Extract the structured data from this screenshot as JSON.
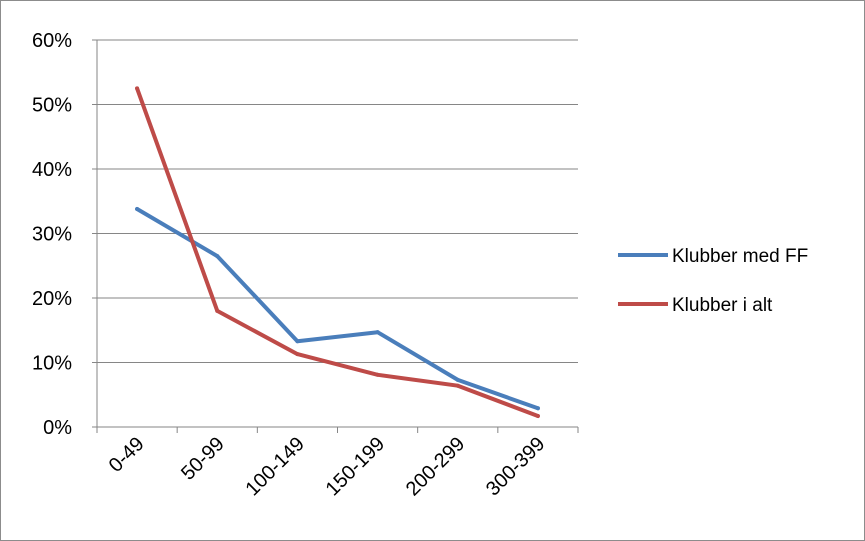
{
  "chart_data": {
    "type": "line",
    "title": "",
    "xlabel": "",
    "ylabel": "",
    "categories": [
      "0-49",
      "50-99",
      "100-149",
      "150-199",
      "200-299",
      "300-399"
    ],
    "y_tick_labels": [
      "0%",
      "10%",
      "20%",
      "30%",
      "40%",
      "50%",
      "60%"
    ],
    "ylim": [
      0,
      60
    ],
    "y_unit": "%",
    "grid": true,
    "legend_position": "right",
    "series": [
      {
        "name": "Klubber med FF",
        "values": [
          33.8,
          26.5,
          13.3,
          14.7,
          7.3,
          2.9
        ],
        "color": "#4a7ebb"
      },
      {
        "name": "Klubber i alt",
        "values": [
          52.5,
          18.0,
          11.3,
          8.1,
          6.4,
          1.7
        ],
        "color": "#be4b48"
      }
    ]
  }
}
